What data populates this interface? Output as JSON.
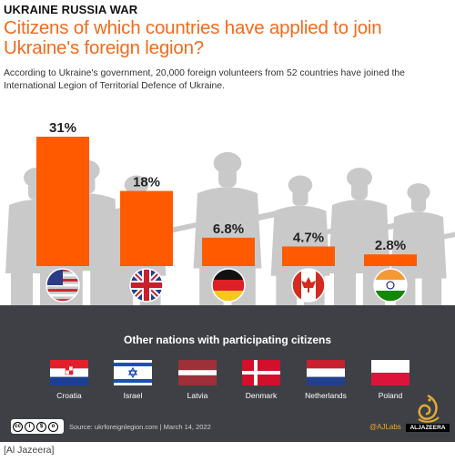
{
  "header": {
    "kicker": "UKRAINE RUSSIA WAR",
    "title": "Citizens of which countries have applied to join Ukraine's foreign legion?",
    "subtitle": "According to Ukraine's government, 20,000 foreign volunteers from 52 countries have joined the International Legion of Territorial Defence of Ukraine."
  },
  "chart_data": {
    "type": "bar",
    "categories": [
      "United States",
      "United Kingdom",
      "Germany",
      "Canada",
      "India"
    ],
    "values": [
      31,
      18,
      6.8,
      4.7,
      2.8
    ],
    "labels": [
      "31%",
      "18%",
      "6.8%",
      "4.7%",
      "2.8%"
    ],
    "unit": "%",
    "ylim": [
      0,
      31
    ],
    "grid": false,
    "bar_color": "#ff5a00"
  },
  "other_nations": {
    "title": "Other nations with participating citizens",
    "items": [
      {
        "name": "Croatia",
        "flag": "croatia-flag"
      },
      {
        "name": "Israel",
        "flag": "israel-flag"
      },
      {
        "name": "Latvia",
        "flag": "latvia-flag"
      },
      {
        "name": "Denmark",
        "flag": "denmark-flag"
      },
      {
        "name": "Netherlands",
        "flag": "netherlands-flag"
      },
      {
        "name": "Poland",
        "flag": "poland-flag"
      }
    ]
  },
  "footer": {
    "source": "Source: ukrforeignlegion.com  |  March 14, 2022",
    "ajlabs": "@AJLabs",
    "brand": "ALJAZEERA",
    "license": "cc-by-nc-sa-icon"
  },
  "caption": "[Al Jazeera]",
  "colors": {
    "title": "#f26b1d",
    "bar": "#ff5a00",
    "silhouette": "#c9c9c9",
    "ground": "#3e4045"
  }
}
